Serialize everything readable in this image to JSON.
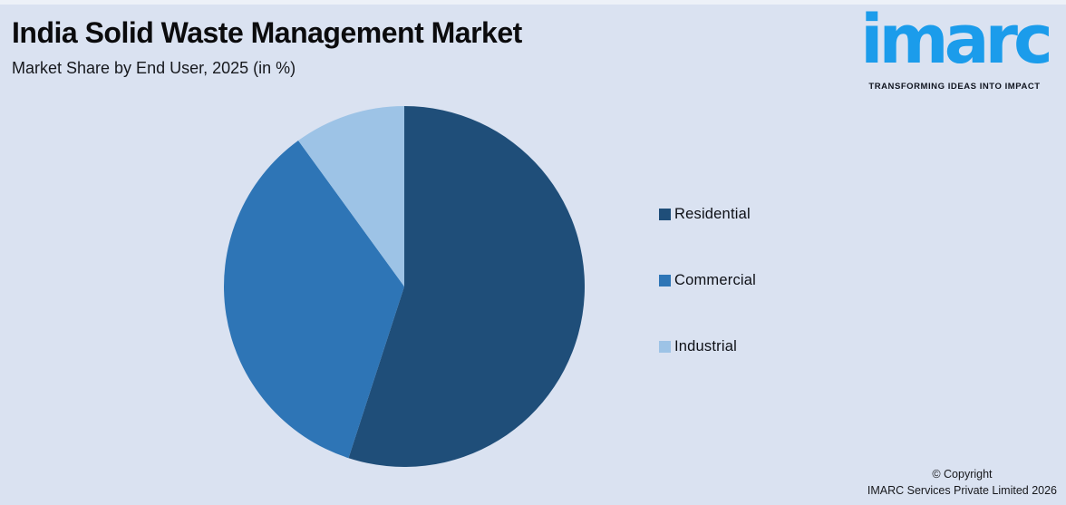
{
  "page": {
    "background": "#DAE2F1",
    "top_strip_color": "#EDF1F8"
  },
  "header": {
    "title": "India Solid Waste Management Market",
    "subtitle": "Market Share by End User, 2025 (in %)"
  },
  "brand": {
    "name": "imarc",
    "tagline": "TRANSFORMING IDEAS INTO IMPACT",
    "color": "#1B9CEB",
    "tagline_color": "#10141F"
  },
  "chart_data": {
    "type": "pie",
    "title": "India Solid Waste Management Market",
    "subtitle": "Market Share by End User, 2025 (in %)",
    "categories": [
      "Residential",
      "Commercial",
      "Industrial"
    ],
    "values": [
      55,
      35,
      10
    ],
    "colors": [
      "#1F4E79",
      "#2E75B6",
      "#9DC3E6"
    ],
    "start_angle_deg": 0,
    "direction": "clockwise",
    "legend_position": "right",
    "data_labels": false
  },
  "footer": {
    "line1": "© Copyright",
    "line2": "IMARC Services Private Limited 2026"
  }
}
